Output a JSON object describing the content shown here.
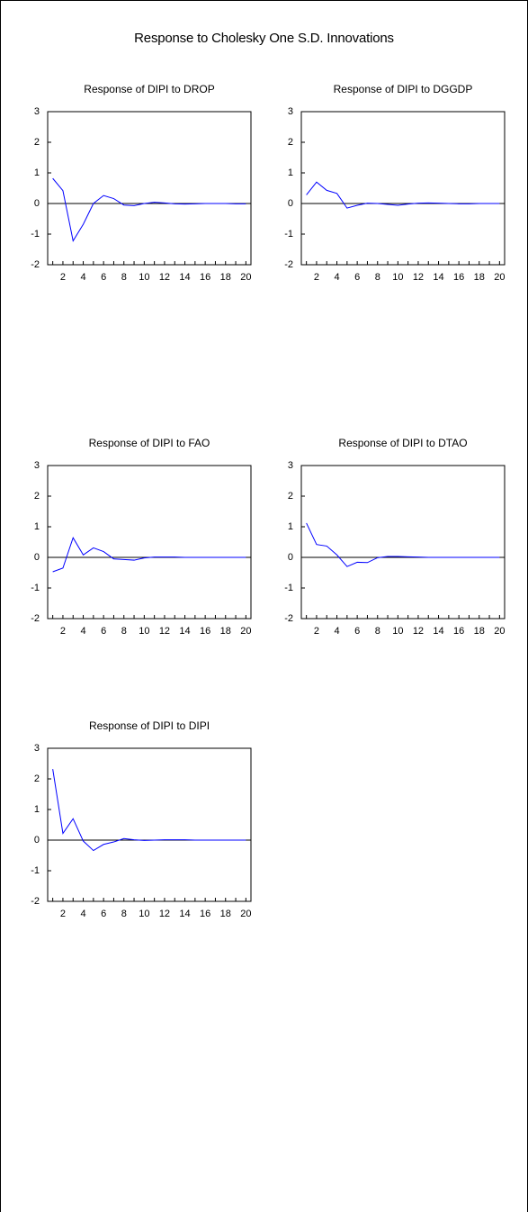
{
  "page_title": "Response to Cholesky One S.D. Innovations",
  "colors": {
    "line": "#0000ff",
    "zero_line": "#000000",
    "axis": "#000000",
    "text": "#000000"
  },
  "chart_data": [
    {
      "type": "line",
      "title": "Response of DIPI to DROP",
      "x": [
        1,
        2,
        3,
        4,
        5,
        6,
        7,
        8,
        9,
        10,
        11,
        12,
        13,
        14,
        15,
        16,
        17,
        18,
        19,
        20
      ],
      "series": [
        {
          "values": [
            0.82,
            0.42,
            -1.22,
            -0.68,
            0.0,
            0.26,
            0.16,
            -0.05,
            -0.07,
            0.0,
            0.04,
            0.02,
            -0.01,
            -0.02,
            -0.01,
            0.0,
            0.0,
            0.0,
            -0.01,
            -0.01
          ]
        }
      ],
      "xticks": [
        2,
        4,
        6,
        8,
        10,
        12,
        14,
        16,
        18,
        20
      ],
      "yticks": [
        -2,
        -1,
        0,
        1,
        2,
        3
      ],
      "xlim": [
        1,
        20
      ],
      "ylim": [
        -2,
        3
      ],
      "zero_line": true,
      "grid": false
    },
    {
      "type": "line",
      "title": "Response of DIPI to DGGDP",
      "x": [
        1,
        2,
        3,
        4,
        5,
        6,
        7,
        8,
        9,
        10,
        11,
        12,
        13,
        14,
        15,
        16,
        17,
        18,
        19,
        20
      ],
      "series": [
        {
          "values": [
            0.28,
            0.7,
            0.43,
            0.33,
            -0.15,
            -0.06,
            0.01,
            0.0,
            -0.03,
            -0.06,
            -0.02,
            0.01,
            0.02,
            0.01,
            0.0,
            -0.01,
            -0.01,
            0.0,
            0.0,
            0.0
          ]
        }
      ],
      "xticks": [
        2,
        4,
        6,
        8,
        10,
        12,
        14,
        16,
        18,
        20
      ],
      "yticks": [
        -2,
        -1,
        0,
        1,
        2,
        3
      ],
      "xlim": [
        1,
        20
      ],
      "ylim": [
        -2,
        3
      ],
      "zero_line": true,
      "grid": false
    },
    {
      "type": "line",
      "title": "Response of DIPI to FAO",
      "x": [
        1,
        2,
        3,
        4,
        5,
        6,
        7,
        8,
        9,
        10,
        11,
        12,
        13,
        14,
        15,
        16,
        17,
        18,
        19,
        20
      ],
      "series": [
        {
          "values": [
            -0.47,
            -0.35,
            0.64,
            0.08,
            0.31,
            0.19,
            -0.05,
            -0.07,
            -0.09,
            -0.02,
            0.01,
            0.01,
            0.01,
            0.0,
            0.0,
            0.0,
            0.0,
            0.0,
            0.0,
            0.0
          ]
        }
      ],
      "xticks": [
        2,
        4,
        6,
        8,
        10,
        12,
        14,
        16,
        18,
        20
      ],
      "yticks": [
        -2,
        -1,
        0,
        1,
        2,
        3
      ],
      "xlim": [
        1,
        20
      ],
      "ylim": [
        -2,
        3
      ],
      "zero_line": true,
      "grid": false
    },
    {
      "type": "line",
      "title": "Response of DIPI to DTAO",
      "x": [
        1,
        2,
        3,
        4,
        5,
        6,
        7,
        8,
        9,
        10,
        11,
        12,
        13,
        14,
        15,
        16,
        17,
        18,
        19,
        20
      ],
      "series": [
        {
          "values": [
            1.12,
            0.42,
            0.37,
            0.08,
            -0.3,
            -0.16,
            -0.17,
            -0.01,
            0.03,
            0.03,
            0.02,
            0.01,
            0.0,
            0.0,
            0.0,
            0.0,
            0.0,
            0.0,
            0.0,
            0.0
          ]
        }
      ],
      "xticks": [
        2,
        4,
        6,
        8,
        10,
        12,
        14,
        16,
        18,
        20
      ],
      "yticks": [
        -2,
        -1,
        0,
        1,
        2,
        3
      ],
      "xlim": [
        1,
        20
      ],
      "ylim": [
        -2,
        3
      ],
      "zero_line": true,
      "grid": false
    },
    {
      "type": "line",
      "title": "Response of DIPI to DIPI",
      "x": [
        1,
        2,
        3,
        4,
        5,
        6,
        7,
        8,
        9,
        10,
        11,
        12,
        13,
        14,
        15,
        16,
        17,
        18,
        19,
        20
      ],
      "series": [
        {
          "values": [
            2.32,
            0.22,
            0.7,
            -0.03,
            -0.34,
            -0.14,
            -0.06,
            0.05,
            0.01,
            -0.01,
            0.0,
            0.01,
            0.01,
            0.01,
            0.0,
            0.0,
            0.0,
            0.0,
            0.0,
            0.0
          ]
        }
      ],
      "xticks": [
        2,
        4,
        6,
        8,
        10,
        12,
        14,
        16,
        18,
        20
      ],
      "yticks": [
        -2,
        -1,
        0,
        1,
        2,
        3
      ],
      "xlim": [
        1,
        20
      ],
      "ylim": [
        -2,
        3
      ],
      "zero_line": true,
      "grid": false
    }
  ]
}
